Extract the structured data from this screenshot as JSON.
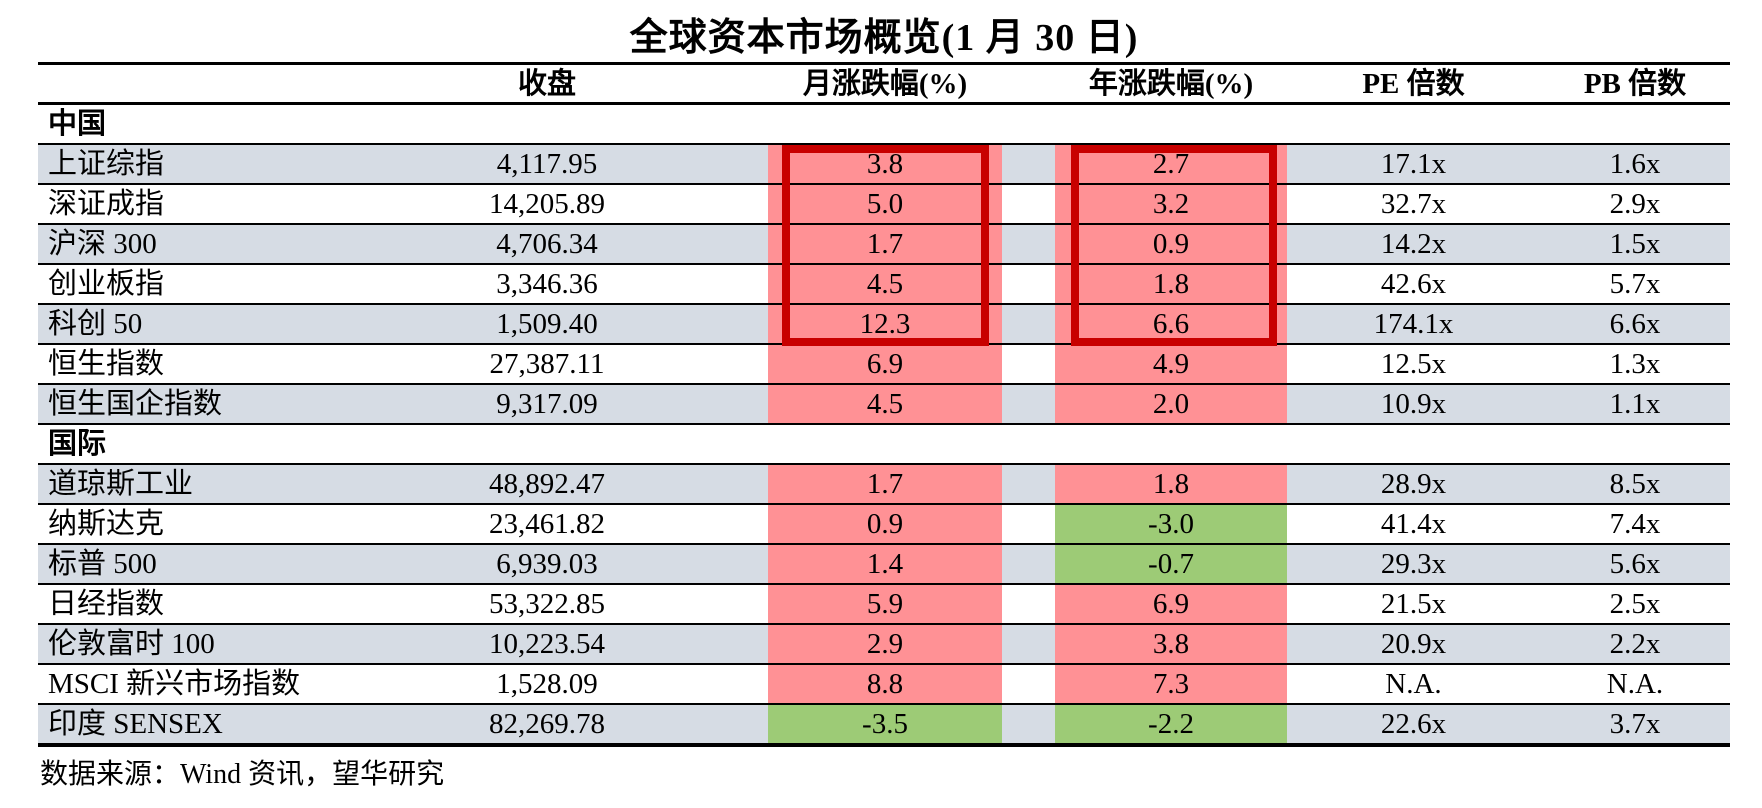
{
  "title": "全球资本市场概览(1 月 30 日)",
  "columns": [
    "收盘",
    "月涨跌幅(%)",
    "年涨跌幅(%)",
    "PE 倍数",
    "PB 倍数"
  ],
  "sections": [
    {
      "label": "中国",
      "rows": [
        {
          "name": "上证综指",
          "close": "4,117.95",
          "month": "3.8",
          "year": "2.7",
          "pe": "17.1x",
          "pb": "1.6x"
        },
        {
          "name": "深证成指",
          "close": "14,205.89",
          "month": "5.0",
          "year": "3.2",
          "pe": "32.7x",
          "pb": "2.9x"
        },
        {
          "name": "沪深 300",
          "close": "4,706.34",
          "month": "1.7",
          "year": "0.9",
          "pe": "14.2x",
          "pb": "1.5x"
        },
        {
          "name": "创业板指",
          "close": "3,346.36",
          "month": "4.5",
          "year": "1.8",
          "pe": "42.6x",
          "pb": "5.7x"
        },
        {
          "name": "科创 50",
          "close": "1,509.40",
          "month": "12.3",
          "year": "6.6",
          "pe": "174.1x",
          "pb": "6.6x"
        },
        {
          "name": "恒生指数",
          "close": "27,387.11",
          "month": "6.9",
          "year": "4.9",
          "pe": "12.5x",
          "pb": "1.3x"
        },
        {
          "name": "恒生国企指数",
          "close": "9,317.09",
          "month": "4.5",
          "year": "2.0",
          "pe": "10.9x",
          "pb": "1.1x"
        }
      ]
    },
    {
      "label": "国际",
      "rows": [
        {
          "name": "道琼斯工业",
          "close": "48,892.47",
          "month": "1.7",
          "year": "1.8",
          "pe": "28.9x",
          "pb": "8.5x"
        },
        {
          "name": "纳斯达克",
          "close": "23,461.82",
          "month": "0.9",
          "year": "-3.0",
          "pe": "41.4x",
          "pb": "7.4x"
        },
        {
          "name": "标普 500",
          "close": "6,939.03",
          "month": "1.4",
          "year": "-0.7",
          "pe": "29.3x",
          "pb": "5.6x"
        },
        {
          "name": "日经指数",
          "close": "53,322.85",
          "month": "5.9",
          "year": "6.9",
          "pe": "21.5x",
          "pb": "2.5x"
        },
        {
          "name": "伦敦富时 100",
          "close": "10,223.54",
          "month": "2.9",
          "year": "3.8",
          "pe": "20.9x",
          "pb": "2.2x"
        },
        {
          "name": "MSCI 新兴市场指数",
          "close": "1,528.09",
          "month": "8.8",
          "year": "7.3",
          "pe": "N.A.",
          "pb": "N.A."
        },
        {
          "name": "印度 SENSEX",
          "close": "82,269.78",
          "month": "-3.5",
          "year": "-2.2",
          "pe": "22.6x",
          "pb": "3.7x"
        }
      ]
    }
  ],
  "footer": "数据来源：Wind 资讯，望华研究",
  "colors": {
    "positive_highlight": "#FF9195",
    "negative_highlight": "#9DCB76",
    "row_stripe": "#D6DCE4",
    "annotation_box_border": "#C80000",
    "rule_line": "#000000"
  }
}
